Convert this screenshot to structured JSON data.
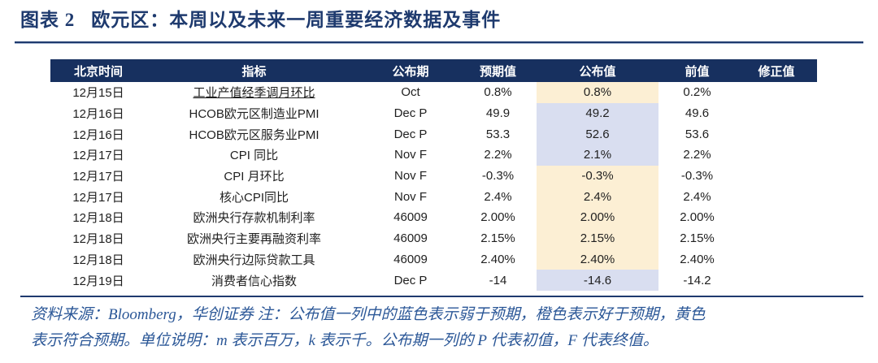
{
  "title": {
    "figure_label": "图表 2",
    "text": "欧元区：本周以及未来一周重要经济数据及事件"
  },
  "table": {
    "columns": [
      {
        "key": "time",
        "label": "北京时间"
      },
      {
        "key": "indicator",
        "label": "指标"
      },
      {
        "key": "period",
        "label": "公布期"
      },
      {
        "key": "expected",
        "label": "预期值"
      },
      {
        "key": "announced",
        "label": "公布值"
      },
      {
        "key": "prior",
        "label": "前值"
      },
      {
        "key": "revised",
        "label": "修正值"
      }
    ],
    "rows": [
      {
        "time": "12月15日",
        "indicator": "工业产值经季调月环比",
        "indicator_underline": true,
        "period": "Oct",
        "expected": "0.8%",
        "announced": "0.8%",
        "announced_highlight": "yellow",
        "prior": "0.2%",
        "revised": ""
      },
      {
        "time": "12月16日",
        "indicator": "HCOB欧元区制造业PMI",
        "period": "Dec P",
        "expected": "49.9",
        "announced": "49.2",
        "announced_highlight": "blue",
        "prior": "49.6",
        "revised": ""
      },
      {
        "time": "12月16日",
        "indicator": "HCOB欧元区服务业PMI",
        "period": "Dec P",
        "expected": "53.3",
        "announced": "52.6",
        "announced_highlight": "blue",
        "prior": "53.6",
        "revised": ""
      },
      {
        "time": "12月17日",
        "indicator": "CPI 同比",
        "period": "Nov F",
        "expected": "2.2%",
        "announced": "2.1%",
        "announced_highlight": "blue",
        "prior": "2.2%",
        "revised": ""
      },
      {
        "time": "12月17日",
        "indicator": "CPI 月环比",
        "period": "Nov F",
        "expected": "-0.3%",
        "announced": "-0.3%",
        "announced_highlight": "yellow",
        "prior": "-0.3%",
        "revised": ""
      },
      {
        "time": "12月17日",
        "indicator": "核心CPI同比",
        "period": "Nov F",
        "expected": "2.4%",
        "announced": "2.4%",
        "announced_highlight": "yellow",
        "prior": "2.4%",
        "revised": ""
      },
      {
        "time": "12月18日",
        "indicator": "欧洲央行存款机制利率",
        "period": "46009",
        "expected": "2.00%",
        "announced": "2.00%",
        "announced_highlight": "yellow",
        "prior": "2.00%",
        "revised": ""
      },
      {
        "time": "12月18日",
        "indicator": "欧洲央行主要再融资利率",
        "period": "46009",
        "expected": "2.15%",
        "announced": "2.15%",
        "announced_highlight": "yellow",
        "prior": "2.15%",
        "revised": ""
      },
      {
        "time": "12月18日",
        "indicator": "欧洲央行边际贷款工具",
        "period": "46009",
        "expected": "2.40%",
        "announced": "2.40%",
        "announced_highlight": "yellow",
        "prior": "2.40%",
        "revised": ""
      },
      {
        "time": "12月19日",
        "indicator": "消费者信心指数",
        "period": "Dec P",
        "expected": "-14",
        "announced": "-14.6",
        "announced_highlight": "blue",
        "prior": "-14.2",
        "revised": ""
      }
    ]
  },
  "footnote": {
    "line1": "资料来源：Bloomberg，华创证券 注：公布值一列中的蓝色表示弱于预期，橙色表示好于预期，黄色",
    "line2": "表示符合预期。单位说明：m 表示百万，k 表示千。公布期一列的 P 代表初值，F 代表终值。"
  },
  "colors": {
    "navy": "#1e3a6e",
    "header_bg": "#17305f",
    "match_yellow": "#fcefd4",
    "miss_blue": "#d9def0",
    "note_blue": "#2b5797",
    "text": "#1f1f1f"
  }
}
